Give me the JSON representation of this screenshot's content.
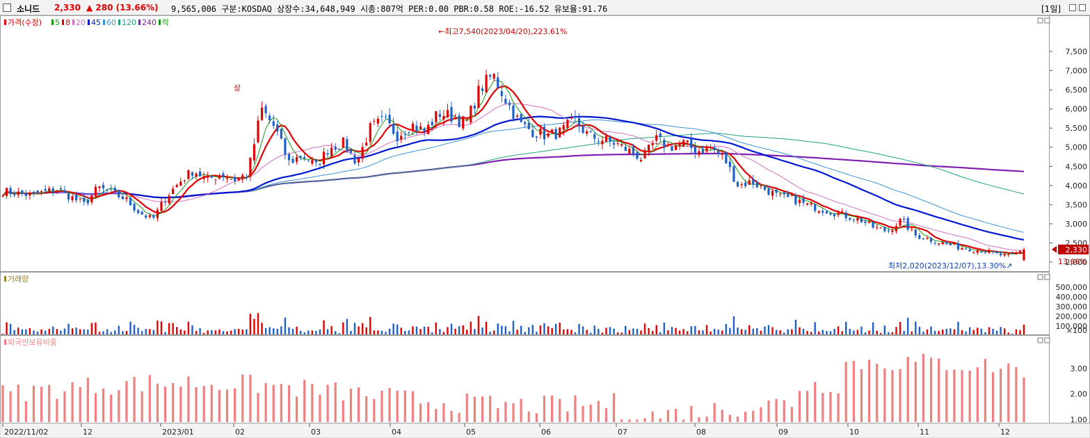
{
  "header": {
    "stock_name": "소니드",
    "price": "2,330",
    "change": "▲ 280 (13.66%)",
    "info": "9,565,006  구분:KOSDAQ 상장수:34,648,949 시총:807억  PER:0.00 PBR:0.58 ROE:-16.52 유보율:91.76",
    "period": "[1일]"
  },
  "chart_data": [
    {
      "type": "candlestick",
      "legend": [
        "가격(수정)",
        "5",
        "8",
        "20",
        "45",
        "60",
        "120",
        "240",
        "락"
      ],
      "ylim": [
        1800,
        7900
      ],
      "yticks": [
        "7,500",
        "7,000",
        "6,500",
        "6,000",
        "5,500",
        "5,000",
        "4,500",
        "4,000",
        "3,500",
        "3,000",
        "2,500",
        "2,000"
      ],
      "xticks": [
        "2022/11/02",
        "12",
        "2023/01",
        "02",
        "03",
        "04",
        "05",
        "06",
        "07",
        "08",
        "09",
        "10",
        "11",
        "12"
      ],
      "annotations": {
        "high": "최고7,540(2023/04/20),223.61%",
        "low": "최저2,020(2023/12/07),13.30%",
        "limit_up": "상"
      },
      "current_price_label": "2,330",
      "current_change_label": "13.66%",
      "close_waypoints": [
        3850,
        3800,
        3750,
        3820,
        3900,
        3700,
        3500,
        3950,
        3800,
        3650,
        3300,
        3100,
        3700,
        4100,
        4400,
        4150,
        4300,
        4150,
        4300,
        6000,
        5500,
        4600,
        4800,
        4500,
        5000,
        5100,
        4600,
        5500,
        5700,
        5300,
        5600,
        5400,
        5900,
        5800,
        5600,
        6500,
        6900,
        6200,
        5600,
        5400,
        5300,
        5400,
        5700,
        5300,
        5200,
        5100,
        4900,
        4700,
        5200,
        5000,
        5100,
        4900,
        5000,
        4700,
        4000,
        4100,
        3900,
        3700,
        3650,
        3500,
        3400,
        3300,
        3200,
        3100,
        2900,
        2800,
        3100,
        2700,
        2600,
        2500,
        2400,
        2350,
        2300,
        2200,
        2150,
        2330
      ]
    },
    {
      "type": "bar",
      "title": "거래량",
      "yticks": [
        "500,000",
        "400,000",
        "300,000",
        "200,000",
        "100,000"
      ],
      "unit_label": "×100"
    },
    {
      "type": "bar",
      "title": "외국인보유비중",
      "yticks": [
        "3.00",
        "2.00",
        "1.00"
      ],
      "ylim": [
        0.9,
        3.9
      ]
    }
  ],
  "colors": {
    "up": "#e00000",
    "down": "#1f5fc8",
    "ma5": "#1a9a1a",
    "ma8": "#e00000",
    "ma20": "#d070c0",
    "ma45": "#0018d0",
    "ma60": "#4090d0",
    "ma120": "#20a080",
    "ma240": "#8020b0",
    "foreign": "#f08080"
  }
}
